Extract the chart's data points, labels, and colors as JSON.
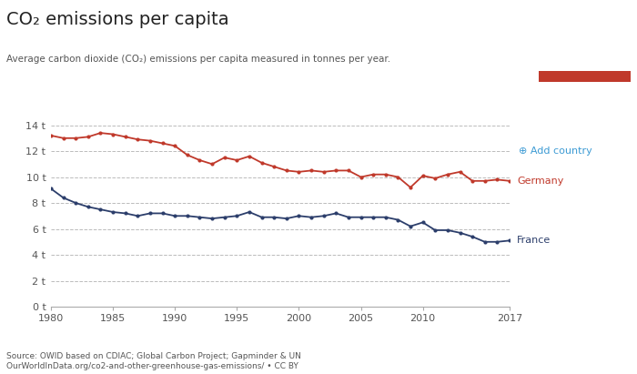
{
  "title": "CO₂ emissions per capita",
  "subtitle": "Average carbon dioxide (CO₂) emissions per capita measured in tonnes per year.",
  "xlim": [
    1980,
    2017
  ],
  "ylim": [
    0,
    15
  ],
  "yticks": [
    0,
    2,
    4,
    6,
    8,
    10,
    12,
    14
  ],
  "ytick_labels": [
    "0 t",
    "2 t",
    "4 t",
    "6 t",
    "8 t",
    "10 t",
    "12 t",
    "14 t"
  ],
  "xticks": [
    1980,
    1985,
    1990,
    1995,
    2000,
    2005,
    2010,
    2017
  ],
  "germany_color": "#C0392B",
  "france_color": "#2C3E6B",
  "background_color": "#FFFFFF",
  "grid_color": "#BBBBBB",
  "source_text": "Source: OWID based on CDIAC; Global Carbon Project; Gapminder & UN\nOurWorldInData.org/co2-and-other-greenhouse-gas-emissions/ • CC BY",
  "germany_data": {
    "years": [
      1980,
      1981,
      1982,
      1983,
      1984,
      1985,
      1986,
      1987,
      1988,
      1989,
      1990,
      1991,
      1992,
      1993,
      1994,
      1995,
      1996,
      1997,
      1998,
      1999,
      2000,
      2001,
      2002,
      2003,
      2004,
      2005,
      2006,
      2007,
      2008,
      2009,
      2010,
      2011,
      2012,
      2013,
      2014,
      2015,
      2016,
      2017
    ],
    "values": [
      13.2,
      13.0,
      13.0,
      13.1,
      13.4,
      13.3,
      13.1,
      12.9,
      12.8,
      12.6,
      12.4,
      11.7,
      11.3,
      11.0,
      11.5,
      11.3,
      11.6,
      11.1,
      10.8,
      10.5,
      10.4,
      10.5,
      10.4,
      10.5,
      10.5,
      10.0,
      10.2,
      10.2,
      10.0,
      9.2,
      10.1,
      9.9,
      10.2,
      10.4,
      9.7,
      9.7,
      9.8,
      9.7
    ]
  },
  "france_data": {
    "years": [
      1980,
      1981,
      1982,
      1983,
      1984,
      1985,
      1986,
      1987,
      1988,
      1989,
      1990,
      1991,
      1992,
      1993,
      1994,
      1995,
      1996,
      1997,
      1998,
      1999,
      2000,
      2001,
      2002,
      2003,
      2004,
      2005,
      2006,
      2007,
      2008,
      2009,
      2010,
      2011,
      2012,
      2013,
      2014,
      2015,
      2016,
      2017
    ],
    "values": [
      9.1,
      8.4,
      8.0,
      7.7,
      7.5,
      7.3,
      7.2,
      7.0,
      7.2,
      7.2,
      7.0,
      7.0,
      6.9,
      6.8,
      6.9,
      7.0,
      7.3,
      6.9,
      6.9,
      6.8,
      7.0,
      6.9,
      7.0,
      7.2,
      6.9,
      6.9,
      6.9,
      6.9,
      6.7,
      6.2,
      6.5,
      5.9,
      5.9,
      5.7,
      5.4,
      5.0,
      5.0,
      5.1
    ]
  },
  "owid_bg_color": "#1A3A5C",
  "owid_red_color": "#C0392B",
  "add_country_color": "#3D9BD4",
  "label_color_germany": "#C0392B",
  "label_color_france": "#2C3E6B"
}
